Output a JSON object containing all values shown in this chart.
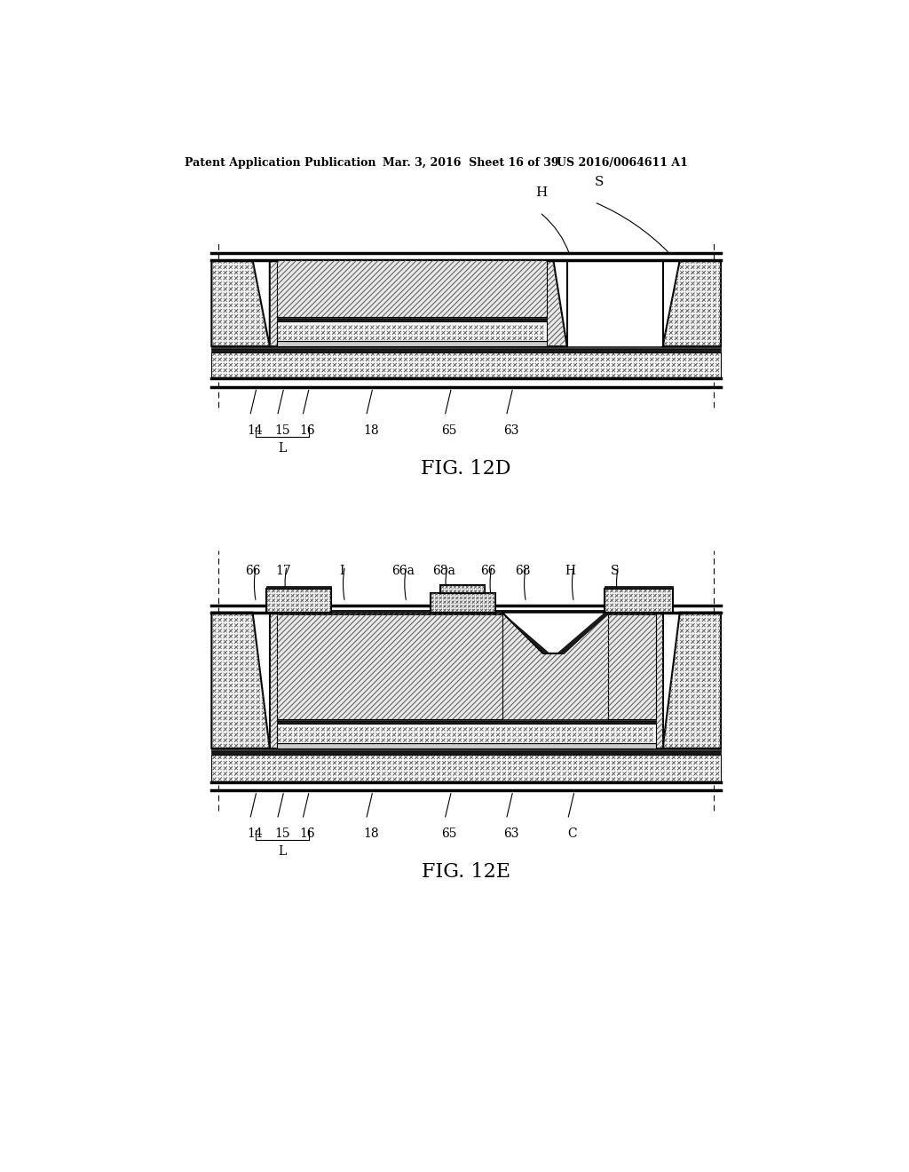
{
  "bg_color": "#ffffff",
  "line_color": "#000000",
  "header_left": "Patent Application Publication",
  "header_mid": "Mar. 3, 2016  Sheet 16 of 39",
  "header_right": "US 2016/0064611 A1",
  "fig1_caption": "FIG. 12D",
  "fig2_caption": "FIG. 12E",
  "lw_thick": 2.5,
  "lw_med": 1.5,
  "lw_thin": 0.8
}
